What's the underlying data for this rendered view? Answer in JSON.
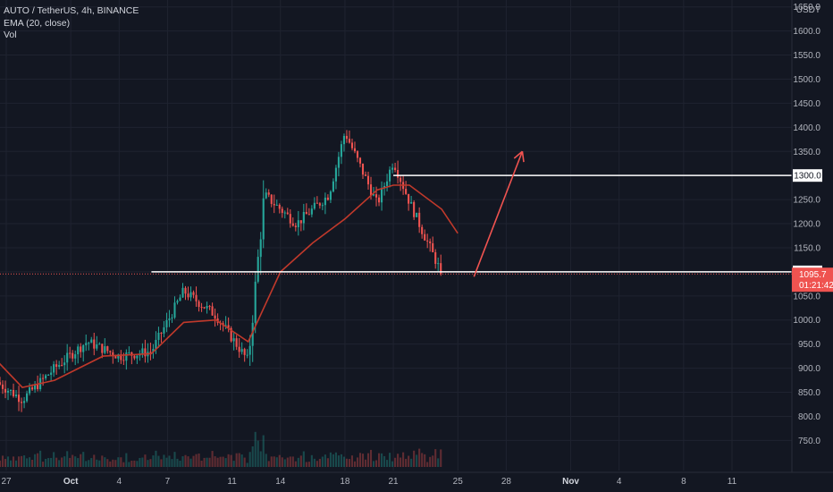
{
  "legend": {
    "symbol_line": "AUTO / TetherUS, 4h, BINANCE",
    "ema_line": "EMA (20, close)",
    "vol_line": "Vol"
  },
  "currency_label": "USDT",
  "colors": {
    "background": "#131722",
    "grid": "#1f2330",
    "up": "#26a69a",
    "down": "#ef5350",
    "ema": "#c0392b",
    "level_line": "#ffffff",
    "arrow": "#f05350",
    "axis_text": "#b2b5be"
  },
  "chart_data": {
    "type": "candlestick",
    "title": "AUTO / TetherUS, 4h, BINANCE",
    "indicators": [
      "EMA (20, close)",
      "Vol"
    ],
    "y_axis": {
      "range": [
        695,
        1655
      ],
      "ticks": [
        "1650.0",
        "1600.0",
        "1550.0",
        "1500.0",
        "1450.0",
        "1400.0",
        "1350.0",
        "1300.0",
        "1250.0",
        "1200.0",
        "1150.0",
        "1100.0",
        "1050.0",
        "1000.0",
        "950.0",
        "900.0",
        "850.0",
        "800.0",
        "750.0"
      ],
      "tick_values": [
        1650,
        1600,
        1550,
        1500,
        1450,
        1400,
        1350,
        1300,
        1250,
        1200,
        1150,
        1100,
        1050,
        1000,
        950,
        900,
        850,
        800,
        750
      ]
    },
    "x_axis": {
      "ticks": [
        {
          "label": "27",
          "date": "2021-09-27",
          "bold": false
        },
        {
          "label": "Oct",
          "date": "2021-10-01",
          "bold": true
        },
        {
          "label": "4",
          "date": "2021-10-04",
          "bold": false
        },
        {
          "label": "7",
          "date": "2021-10-07",
          "bold": false
        },
        {
          "label": "11",
          "date": "2021-10-11",
          "bold": false
        },
        {
          "label": "14",
          "date": "2021-10-14",
          "bold": false
        },
        {
          "label": "18",
          "date": "2021-10-18",
          "bold": false
        },
        {
          "label": "21",
          "date": "2021-10-21",
          "bold": false
        },
        {
          "label": "25",
          "date": "2021-10-25",
          "bold": false
        },
        {
          "label": "28",
          "date": "2021-10-28",
          "bold": false
        },
        {
          "label": "Nov",
          "date": "2021-11-01",
          "bold": true
        },
        {
          "label": "4",
          "date": "2021-11-04",
          "bold": false
        },
        {
          "label": "8",
          "date": "2021-11-08",
          "bold": false
        },
        {
          "label": "11",
          "date": "2021-11-11",
          "bold": false
        }
      ]
    },
    "key_points": [
      {
        "date": "2021-09-26",
        "close": 880
      },
      {
        "date": "2021-09-28",
        "close": 835
      },
      {
        "date": "2021-09-30",
        "close": 900
      },
      {
        "date": "2021-10-02",
        "close": 955
      },
      {
        "date": "2021-10-04",
        "close": 925
      },
      {
        "date": "2021-10-06",
        "close": 935
      },
      {
        "date": "2021-10-08",
        "close": 1060
      },
      {
        "date": "2021-10-10",
        "close": 1010
      },
      {
        "date": "2021-10-12",
        "close": 915
      },
      {
        "date": "2021-10-13",
        "close": 1260
      },
      {
        "date": "2021-10-15",
        "close": 1200
      },
      {
        "date": "2021-10-17",
        "close": 1260
      },
      {
        "date": "2021-10-18",
        "close": 1390
      },
      {
        "date": "2021-10-20",
        "close": 1240
      },
      {
        "date": "2021-10-21",
        "close": 1330
      },
      {
        "date": "2021-10-22",
        "close": 1245
      },
      {
        "date": "2021-10-23",
        "close": 1170
      },
      {
        "date": "2021-10-24",
        "close": 1096
      }
    ],
    "ema_points": [
      {
        "date": "2021-09-26",
        "value": 930
      },
      {
        "date": "2021-09-28",
        "value": 860
      },
      {
        "date": "2021-09-30",
        "value": 875
      },
      {
        "date": "2021-10-03",
        "value": 925
      },
      {
        "date": "2021-10-06",
        "value": 930
      },
      {
        "date": "2021-10-08",
        "value": 995
      },
      {
        "date": "2021-10-10",
        "value": 1000
      },
      {
        "date": "2021-10-12",
        "value": 955
      },
      {
        "date": "2021-10-14",
        "value": 1100
      },
      {
        "date": "2021-10-16",
        "value": 1160
      },
      {
        "date": "2021-10-18",
        "value": 1210
      },
      {
        "date": "2021-10-20",
        "value": 1270
      },
      {
        "date": "2021-10-21",
        "value": 1280
      },
      {
        "date": "2021-10-22",
        "value": 1280
      },
      {
        "date": "2021-10-24",
        "value": 1230
      },
      {
        "date": "2021-10-25",
        "value": 1180
      }
    ],
    "horizontal_levels": [
      {
        "value": 1300,
        "label": "1300.0",
        "from_date": "2021-10-21"
      },
      {
        "value": 1100,
        "label": "1100.0",
        "from_date": "2021-10-06"
      }
    ],
    "current_price": {
      "value": 1095.7,
      "label": "1095.7",
      "countdown": "01:21:42"
    },
    "arrow": {
      "from": {
        "date": "2021-10-26",
        "value": 1090
      },
      "to": {
        "date": "2021-10-29",
        "value": 1350
      }
    }
  }
}
